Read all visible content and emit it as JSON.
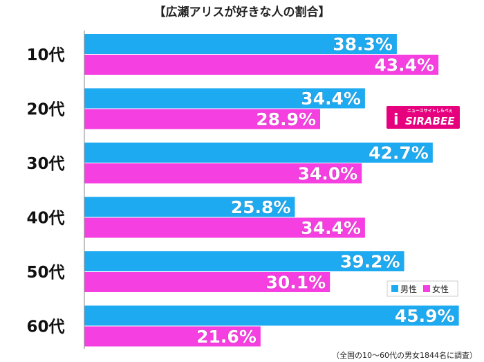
{
  "chart_data": {
    "type": "bar",
    "orientation": "horizontal",
    "title": "【広瀬アリスが好きな人の割合】",
    "categories": [
      "10代",
      "20代",
      "30代",
      "40代",
      "50代",
      "60代"
    ],
    "series": [
      {
        "name": "男性",
        "color": "#1eaaf1",
        "values": [
          38.3,
          34.4,
          42.7,
          25.8,
          39.2,
          45.9
        ]
      },
      {
        "name": "女性",
        "color": "#f53fe0",
        "values": [
          43.4,
          28.9,
          34.0,
          34.4,
          30.1,
          21.6
        ]
      }
    ],
    "value_suffix": "%",
    "xlim": [
      0,
      50
    ],
    "grid": false,
    "legend_position": "bottom-right",
    "note": "（全国の10～60代の男女1844名に調査）"
  },
  "logo": {
    "tagline": "ニュースサイトしらべぇ",
    "name": "SIRABEE",
    "mark": "i"
  }
}
